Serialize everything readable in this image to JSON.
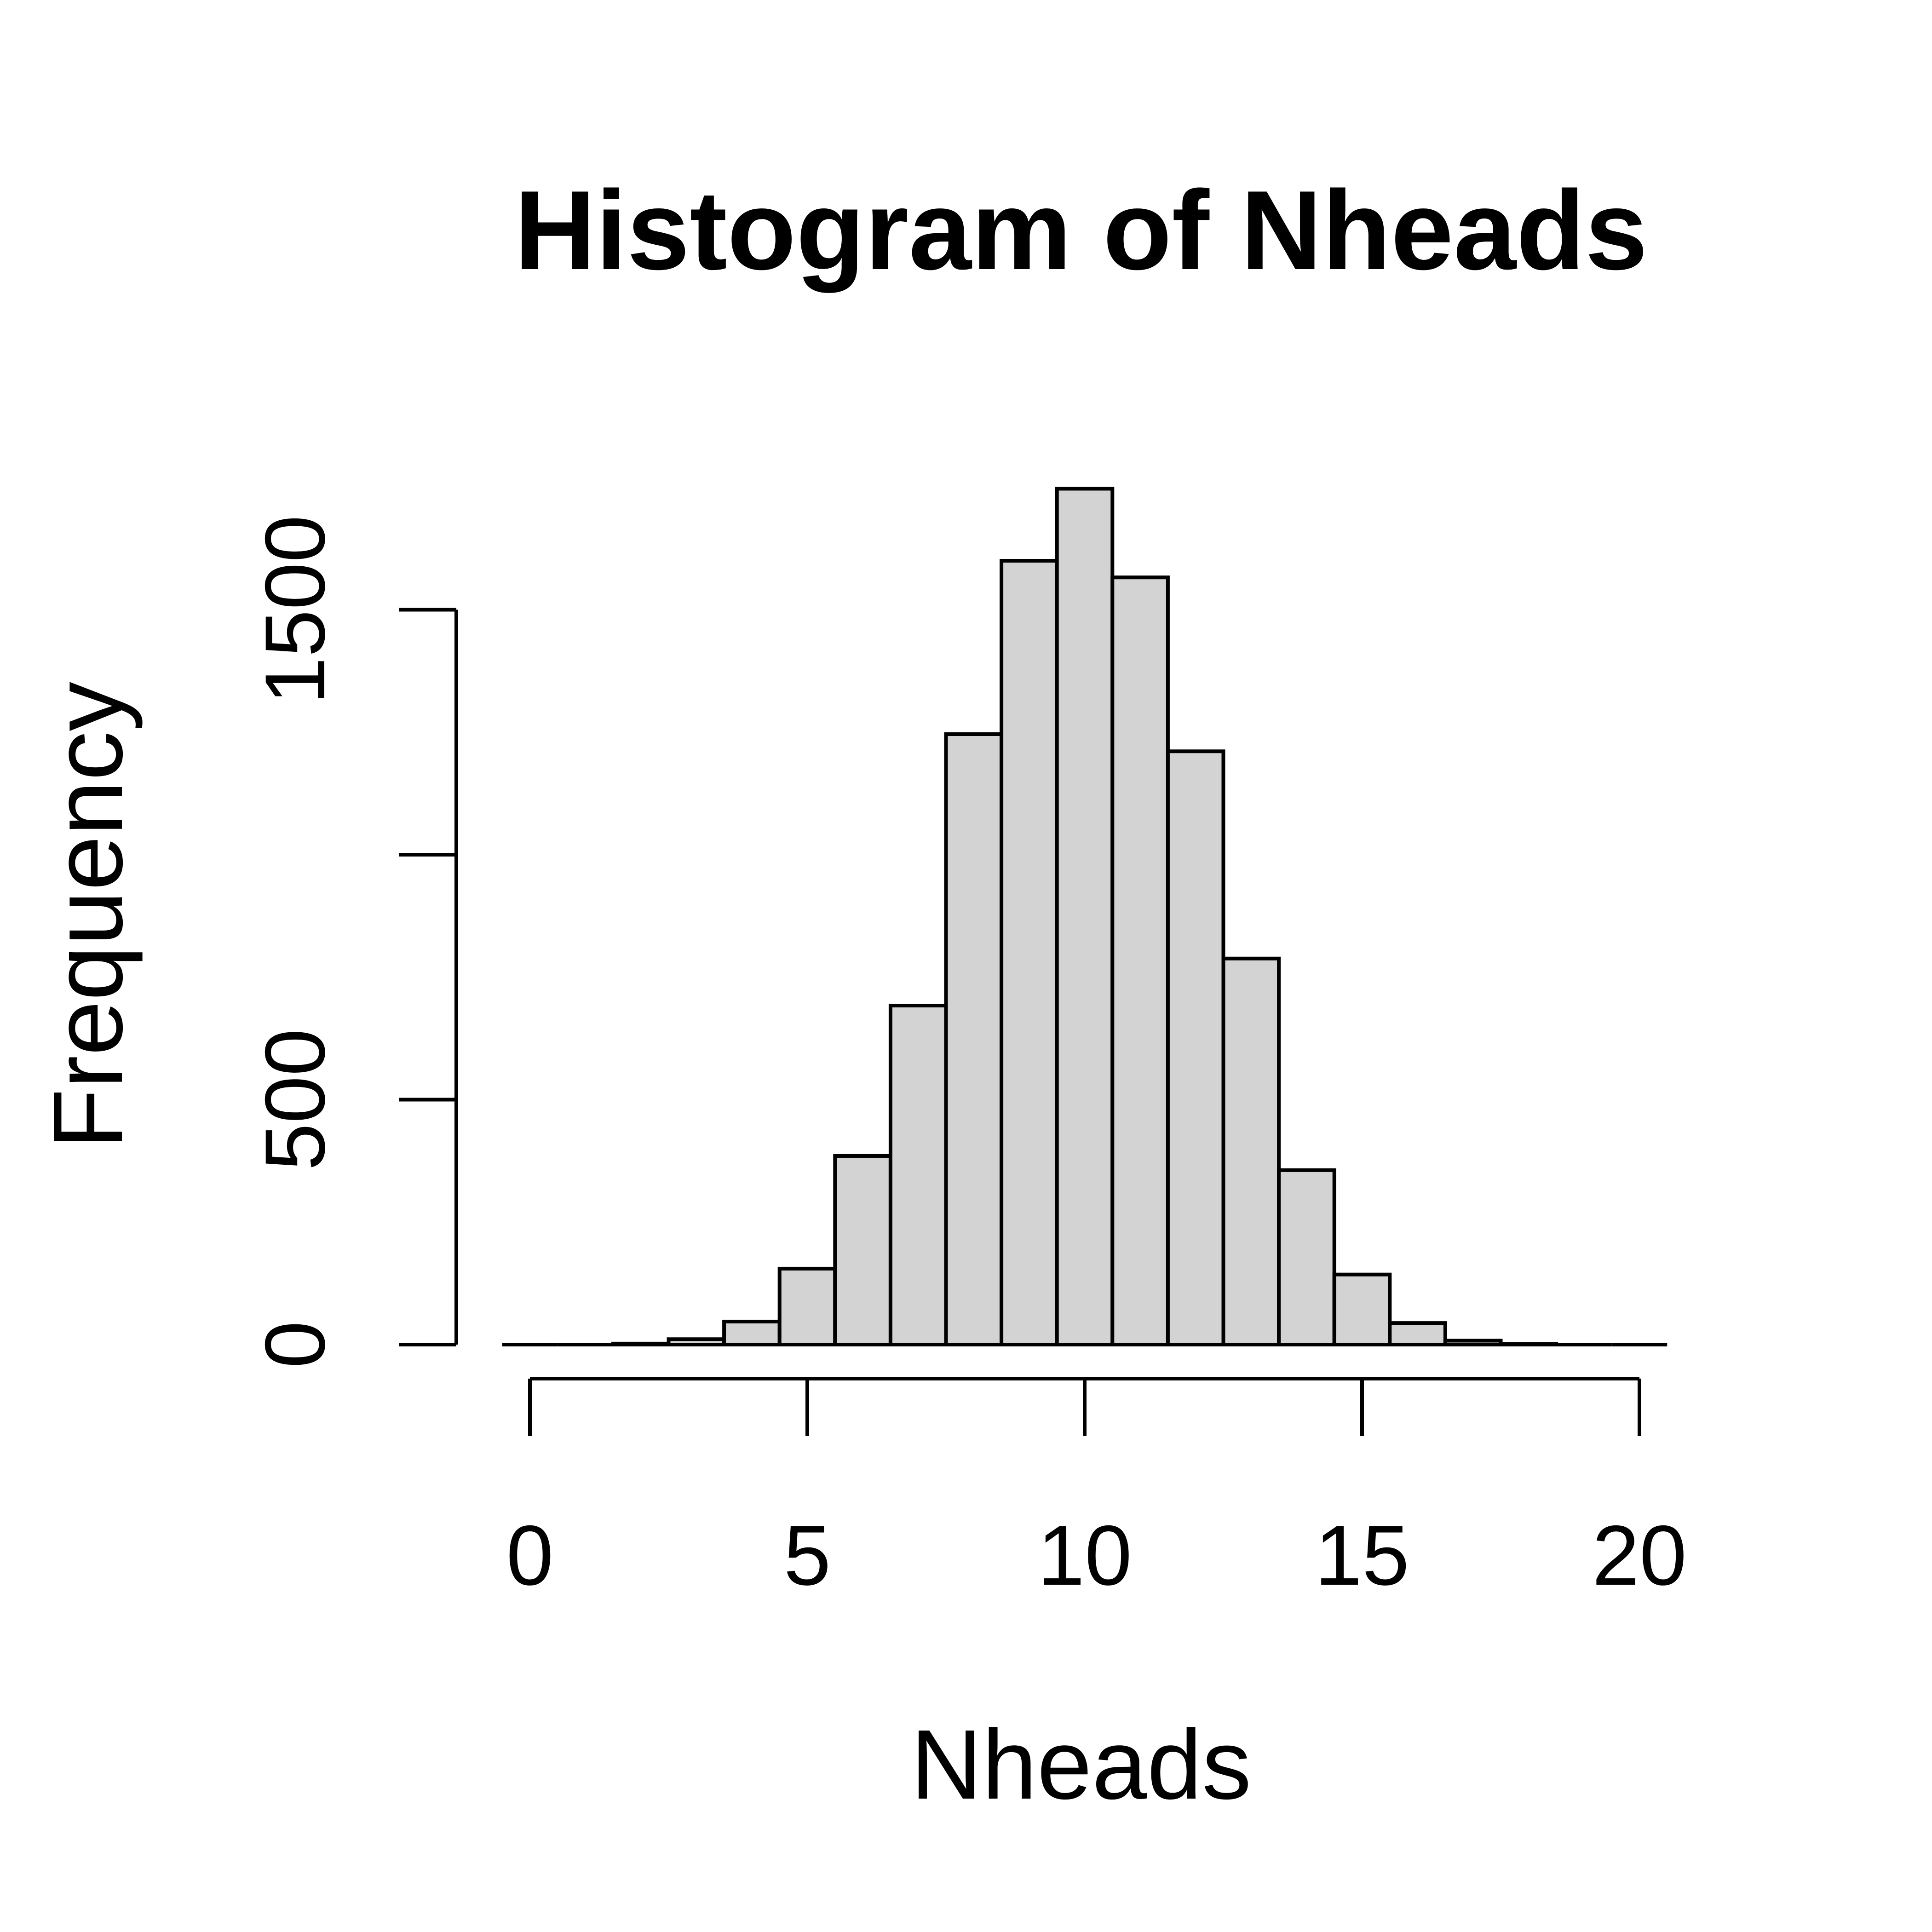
{
  "chart_data": {
    "type": "bar",
    "title": "Histogram of Nheads",
    "xlabel": "Nheads",
    "ylabel": "Frequency",
    "bin_edges": [
      -0.5,
      0.5,
      1.5,
      2.5,
      3.5,
      4.5,
      5.5,
      6.5,
      7.5,
      8.5,
      9.5,
      10.5,
      11.5,
      12.5,
      13.5,
      14.5,
      15.5,
      16.5,
      17.5,
      18.5,
      19.5,
      20.5
    ],
    "values": [
      0,
      0,
      2,
      11,
      47,
      155,
      385,
      692,
      1246,
      1600,
      1747,
      1566,
      1211,
      788,
      356,
      143,
      44,
      8,
      1,
      0,
      0
    ],
    "xlim": [
      0,
      20
    ],
    "ylim": [
      0,
      1747
    ],
    "x_ticks": [
      0,
      5,
      10,
      15,
      20
    ],
    "x_tick_labels": [
      "0",
      "5",
      "10",
      "15",
      "20"
    ],
    "y_ticks": [
      0,
      500,
      1000,
      1500
    ],
    "y_tick_labels": [
      "0",
      "500",
      "",
      "1500"
    ],
    "bar_fill": "#d3d3d3",
    "bar_stroke": "#000000",
    "grid": false,
    "legend": "none"
  }
}
